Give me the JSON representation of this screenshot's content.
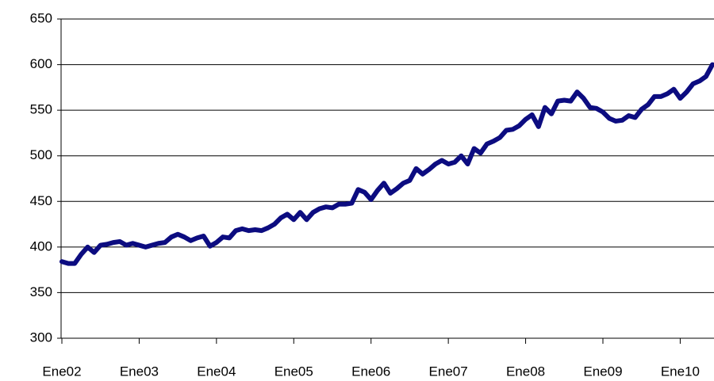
{
  "chart_data": {
    "type": "line",
    "categories": [
      "Ene02",
      null,
      null,
      null,
      null,
      null,
      null,
      null,
      null,
      null,
      null,
      null,
      "Ene03",
      null,
      null,
      null,
      null,
      null,
      null,
      null,
      null,
      null,
      null,
      null,
      "Ene04",
      null,
      null,
      null,
      null,
      null,
      null,
      null,
      null,
      null,
      null,
      null,
      "Ene05",
      null,
      null,
      null,
      null,
      null,
      null,
      null,
      null,
      null,
      null,
      null,
      "Ene06",
      null,
      null,
      null,
      null,
      null,
      null,
      null,
      null,
      null,
      null,
      null,
      "Ene07",
      null,
      null,
      null,
      null,
      null,
      null,
      null,
      null,
      null,
      null,
      null,
      "Ene08",
      null,
      null,
      null,
      null,
      null,
      null,
      null,
      null,
      null,
      null,
      null,
      "Ene09",
      null,
      null,
      null,
      null,
      null,
      null,
      null,
      null,
      null,
      null,
      null,
      "Ene10",
      null,
      null,
      null,
      null,
      null
    ],
    "series": [
      {
        "color": "#0c0c80",
        "values": [
          384,
          382,
          382,
          392,
          400,
          394,
          402,
          403,
          405,
          406,
          402,
          404,
          402,
          400,
          402,
          404,
          405,
          411,
          414,
          411,
          407,
          410,
          412,
          401,
          405,
          411,
          410,
          418,
          420,
          418,
          419,
          418,
          421,
          425,
          432,
          436,
          430,
          438,
          430,
          438,
          442,
          444,
          443,
          447,
          447,
          448,
          463,
          460,
          452,
          462,
          470,
          459,
          464,
          470,
          473,
          486,
          480,
          485,
          491,
          495,
          491,
          493,
          500,
          491,
          508,
          503,
          513,
          516,
          520,
          528,
          529,
          533,
          540,
          545,
          532,
          553,
          546,
          560,
          561,
          560,
          570,
          563,
          553,
          552,
          548,
          541,
          538,
          539,
          544,
          542,
          551,
          556,
          565,
          565,
          568,
          573,
          563,
          570,
          579,
          582,
          587,
          600
        ]
      }
    ],
    "ylim": [
      300,
      650
    ],
    "yticks": [
      300,
      350,
      400,
      450,
      500,
      550,
      600,
      650
    ],
    "grid": true
  }
}
